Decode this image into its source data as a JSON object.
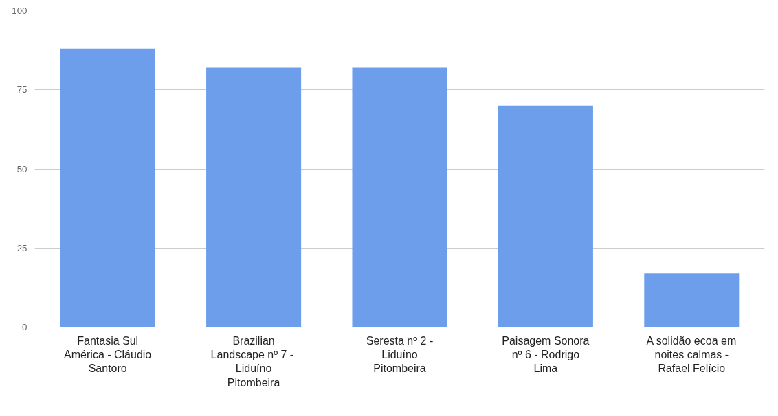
{
  "chart_data": {
    "type": "bar",
    "categories": [
      "Fantasia Sul América - Cláudio Santoro",
      "Brazilian Landscape nº 7  - Liduíno Pitombeira",
      "Seresta nº 2 - Liduíno Pitombeira",
      "Paisagem Sonora nº 6 - Rodrigo Lima",
      "A solidão ecoa em noites calmas - Rafael Felício"
    ],
    "values": [
      88,
      82,
      82,
      70,
      17
    ],
    "color": "#6d9eeb",
    "ylim": [
      0,
      100
    ],
    "yticks": [
      0,
      25,
      50,
      75,
      100
    ],
    "grid": "y"
  }
}
